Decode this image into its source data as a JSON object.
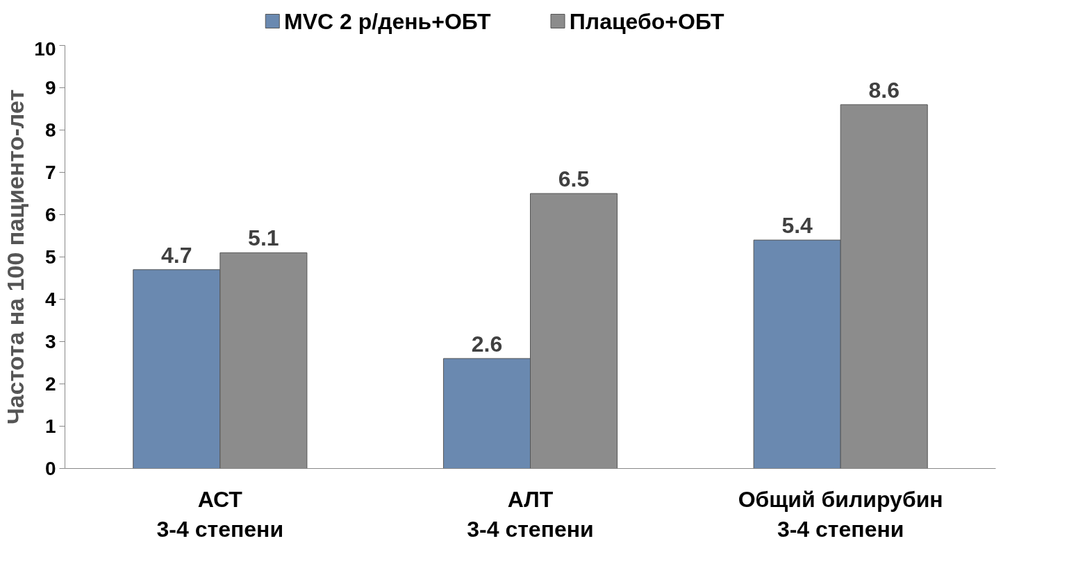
{
  "chart_data": {
    "type": "bar",
    "ylabel": "Частота на 100 пациенто-лет",
    "categories": [
      "АСТ\n3-4 степени",
      "АЛТ\n3-4 степени",
      "Общий билирубин\n3-4 степени"
    ],
    "series": [
      {
        "name": "MVC 2 р/день+ОБТ",
        "color": "#6a89b0",
        "values": [
          4.7,
          2.6,
          5.4
        ]
      },
      {
        "name": "Плацебо+ОБТ",
        "color": "#8c8c8c",
        "values": [
          5.1,
          6.5,
          8.6
        ]
      }
    ],
    "ylim": [
      0,
      10
    ],
    "yticks": [
      0,
      1,
      2,
      3,
      4,
      5,
      6,
      7,
      8,
      9,
      10
    ],
    "grid": false,
    "legend": "top",
    "data_labels": true
  }
}
